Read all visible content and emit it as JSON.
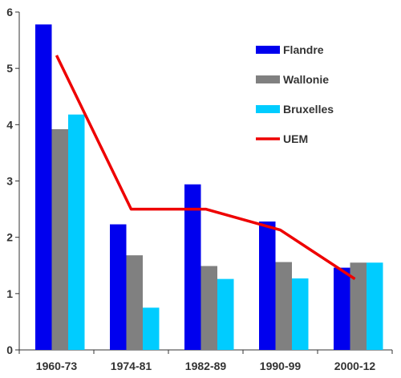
{
  "chart_data": {
    "type": "bar",
    "categories": [
      "1960-73",
      "1974-81",
      "1982-89",
      "1990-99",
      "2000-12"
    ],
    "series": [
      {
        "name": "Flandre",
        "kind": "bar",
        "color": "#0000ee",
        "values": [
          5.78,
          2.23,
          2.94,
          2.28,
          1.46
        ]
      },
      {
        "name": "Wallonie",
        "kind": "bar",
        "color": "#808080",
        "values": [
          3.92,
          1.68,
          1.49,
          1.56,
          1.55
        ]
      },
      {
        "name": "Bruxelles",
        "kind": "bar",
        "color": "#00ccff",
        "values": [
          4.18,
          0.75,
          1.26,
          1.27,
          1.55
        ]
      },
      {
        "name": "UEM",
        "kind": "line",
        "color": "#ee0000",
        "values": [
          5.23,
          2.5,
          2.5,
          2.13,
          1.26
        ]
      }
    ],
    "y_ticks": [
      "0",
      "1",
      "2",
      "3",
      "4",
      "5",
      "6"
    ],
    "ylim": [
      0,
      6
    ],
    "grid": false,
    "legend_position": "top-right",
    "title": "",
    "xlabel": "",
    "ylabel": ""
  }
}
